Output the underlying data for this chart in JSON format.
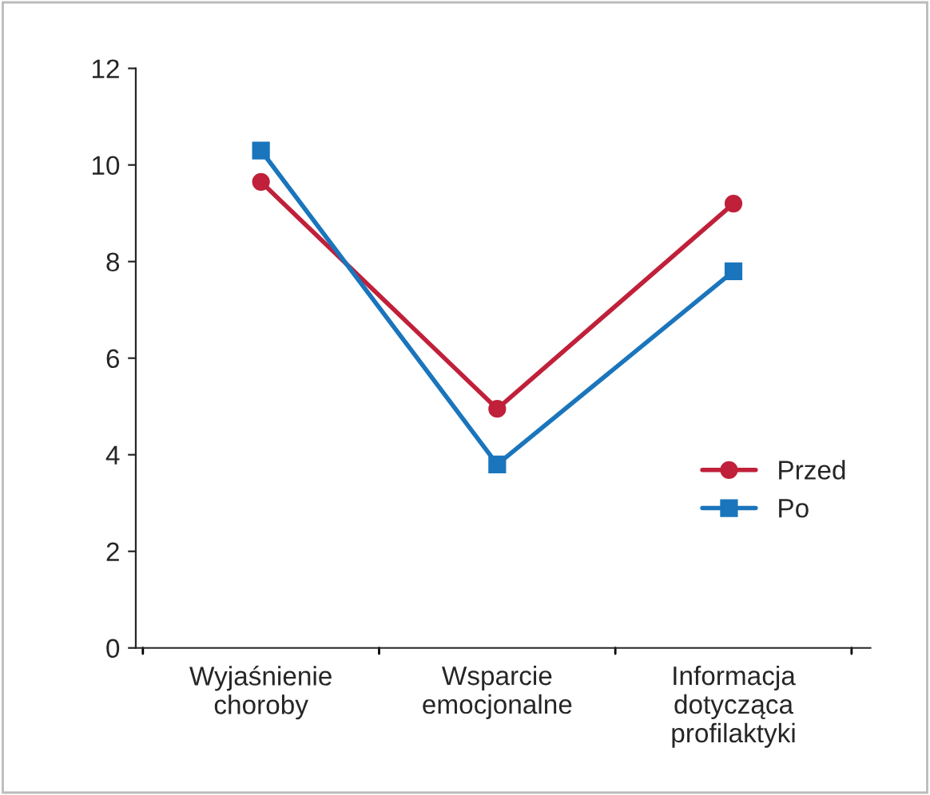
{
  "chart_data": {
    "type": "line",
    "categories": [
      "Wyjaśnienie\nchoroby",
      "Wsparcie\nemocjonalne",
      "Informacja\ndotycząca\nprofilaktyki"
    ],
    "series": [
      {
        "name": "Przed",
        "color": "#c0203a",
        "values": [
          9.65,
          4.95,
          9.2
        ],
        "marker": "circle"
      },
      {
        "name": "Po",
        "color": "#1a75bc",
        "values": [
          10.3,
          3.8,
          7.8
        ],
        "marker": "square"
      }
    ],
    "ylim": [
      0,
      12
    ],
    "yticks": [
      0,
      2,
      4,
      6,
      8,
      10,
      12
    ],
    "grid": false,
    "legend": "right",
    "line_style": "solid"
  }
}
